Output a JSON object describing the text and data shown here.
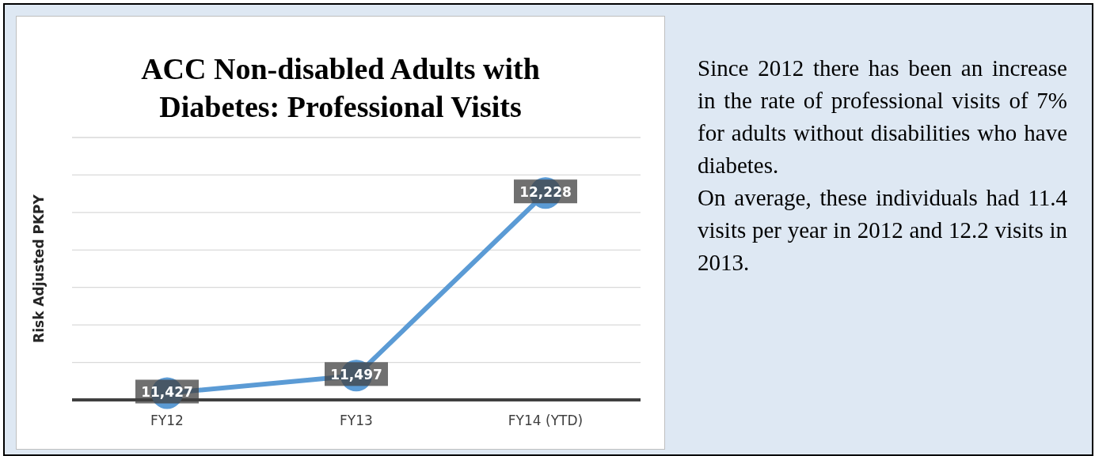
{
  "chart_data": {
    "type": "line",
    "title": "ACC Non-disabled Adults with Diabetes: Professional Visits",
    "ylabel": "Risk Adjusted PKPY",
    "categories": [
      "FY12",
      "FY13",
      "FY14 (YTD)"
    ],
    "values": [
      11427,
      11497,
      12228
    ],
    "color": "#5b9bd5",
    "value_labels": [
      "11,427",
      "11,497",
      "12,228"
    ],
    "grid": "y",
    "marker": "circle",
    "tick_labels": "x",
    "annotations": [
      "Since 2012 there has been an increase in the rate of professional visits of 7% for adults without disabilities who have diabetes.",
      "On average, these individuals had 11.4 visits per year in 2012 and 12.2 visits in 2013."
    ]
  }
}
